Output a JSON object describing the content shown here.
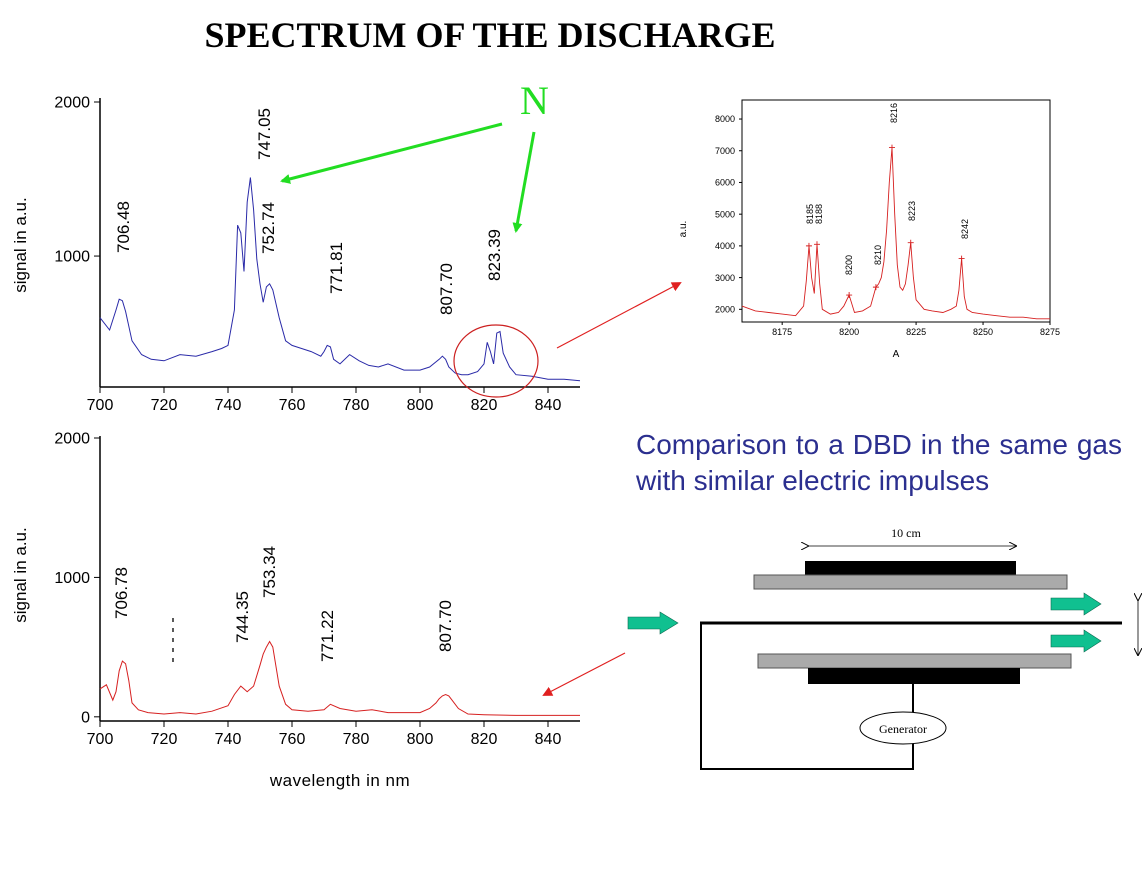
{
  "slide_title": "SPECTRUM OF THE DISCHARGE",
  "comparison_text": "Comparison to a DBD in the same gas with similar electric impulses",
  "n_label": "N",
  "colors": {
    "top_series": "#2a2aa8",
    "bottom_series": "#d62020",
    "inset_series": "#d62020",
    "annotation_arrow_green": "#22dd22",
    "annotation_arrow_red": "#e02020",
    "flow_arrow": "#10c090",
    "comparison_text": "#2b2f8f"
  },
  "chart_data": [
    {
      "type": "line",
      "xlabel": "",
      "ylabel": "signal in a.u.",
      "xlim": [
        700,
        850
      ],
      "ylim": [
        150,
        2000
      ],
      "xticks": [
        "700",
        "720",
        "740",
        "760",
        "780",
        "800",
        "820",
        "840"
      ],
      "yticks": [
        "1000",
        "2000"
      ],
      "series_color": "#2a2aa8",
      "x": [
        700,
        703,
        705,
        706,
        707,
        708,
        710,
        713,
        716,
        720,
        725,
        730,
        735,
        738,
        740,
        742,
        743,
        744,
        745,
        746,
        747,
        748,
        749,
        750,
        751,
        752,
        753,
        754,
        756,
        758,
        760,
        763,
        766,
        769,
        770,
        771,
        772,
        773,
        775,
        778,
        781,
        784,
        787,
        790,
        795,
        800,
        803,
        806,
        807,
        808,
        809,
        811,
        813,
        815,
        818,
        820,
        821,
        822,
        823,
        824,
        825,
        826,
        828,
        830,
        835,
        840,
        845,
        850
      ],
      "values": [
        600,
        520,
        650,
        720,
        710,
        640,
        450,
        360,
        330,
        320,
        360,
        350,
        380,
        400,
        420,
        650,
        1200,
        1150,
        900,
        1350,
        1510,
        1300,
        980,
        820,
        700,
        800,
        820,
        780,
        600,
        450,
        420,
        400,
        380,
        350,
        380,
        420,
        410,
        330,
        300,
        360,
        320,
        290,
        280,
        300,
        260,
        260,
        280,
        330,
        350,
        330,
        280,
        240,
        230,
        230,
        250,
        300,
        440,
        380,
        300,
        500,
        510,
        370,
        280,
        230,
        220,
        200,
        200,
        190
      ]
    },
    {
      "type": "line",
      "xlabel": "wavelength in nm",
      "ylabel": "signal in a.u.",
      "xlim": [
        700,
        850
      ],
      "ylim": [
        -30,
        2000
      ],
      "xticks": [
        "700",
        "720",
        "740",
        "760",
        "780",
        "800",
        "820",
        "840"
      ],
      "yticks": [
        "0",
        "1000",
        "2000"
      ],
      "series_color": "#d62020",
      "x": [
        700,
        702,
        704,
        705,
        706,
        707,
        708,
        709,
        710,
        712,
        715,
        720,
        725,
        730,
        735,
        740,
        742,
        744,
        745,
        746,
        748,
        750,
        751,
        752,
        753,
        754,
        755,
        756,
        758,
        760,
        765,
        770,
        772,
        775,
        780,
        785,
        790,
        795,
        800,
        803,
        805,
        806,
        807,
        808,
        809,
        810,
        812,
        815,
        820,
        830,
        840,
        850
      ],
      "values": [
        200,
        230,
        120,
        180,
        330,
        400,
        380,
        260,
        100,
        50,
        30,
        20,
        30,
        20,
        40,
        80,
        160,
        220,
        200,
        180,
        220,
        370,
        450,
        500,
        540,
        500,
        360,
        220,
        90,
        50,
        40,
        50,
        90,
        60,
        40,
        50,
        30,
        30,
        30,
        60,
        100,
        130,
        150,
        160,
        150,
        120,
        60,
        20,
        15,
        10,
        10,
        10
      ]
    },
    {
      "type": "line",
      "xlabel": "A",
      "ylabel": "a.u.",
      "xlim": [
        8160,
        8275
      ],
      "ylim": [
        1600,
        8600
      ],
      "xticks": [
        "8175",
        "8200",
        "8225",
        "8250",
        "8275"
      ],
      "yticks": [
        "2000",
        "3000",
        "4000",
        "5000",
        "6000",
        "7000",
        "8000"
      ],
      "series_color": "#d62020",
      "x": [
        8160,
        8165,
        8170,
        8175,
        8180,
        8183,
        8184,
        8185,
        8186,
        8187,
        8188,
        8189,
        8190,
        8193,
        8196,
        8198,
        8200,
        8202,
        8205,
        8208,
        8210,
        8211,
        8212,
        8213,
        8214,
        8215,
        8216,
        8217,
        8218,
        8219,
        8220,
        8221,
        8222,
        8223,
        8224,
        8225,
        8228,
        8231,
        8235,
        8238,
        8240,
        8241,
        8242,
        8243,
        8244,
        8246,
        8250,
        8255,
        8260,
        8265,
        8270,
        8275
      ],
      "values": [
        2100,
        1950,
        1900,
        1850,
        1800,
        2100,
        2900,
        4000,
        3000,
        2500,
        4050,
        2800,
        2000,
        1850,
        1900,
        2100,
        2450,
        1900,
        1950,
        2100,
        2700,
        2800,
        3000,
        3500,
        4500,
        6000,
        7100,
        5000,
        3400,
        2700,
        2600,
        2800,
        3400,
        4100,
        3000,
        2300,
        2000,
        1950,
        1900,
        2000,
        2100,
        2600,
        3600,
        2400,
        2000,
        1900,
        1850,
        1800,
        1750,
        1750,
        1700,
        1700
      ]
    }
  ],
  "peak_labels_top": [
    "747.05",
    "706.48",
    "752.74",
    "771.81",
    "807.70",
    "823.39"
  ],
  "peak_labels_bottom": [
    "706.78",
    "744.35",
    "753.34",
    "771.22",
    "807.70"
  ],
  "peak_labels_inset": [
    "8185",
    "8188",
    "8200",
    "8210",
    "8216",
    "8223",
    "8242"
  ],
  "diagram": {
    "dimension_label": "10 cm",
    "generator_label": "Generator"
  }
}
